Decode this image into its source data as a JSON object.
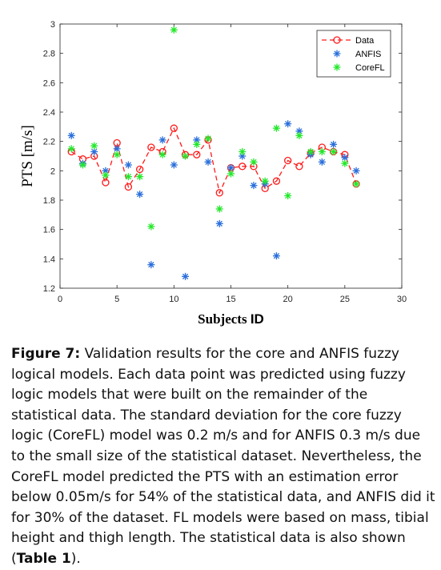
{
  "chart_data": {
    "type": "scatter",
    "xlabel_main": "Subjects",
    "xlabel_suffix": "ID",
    "ylabel": "PTS [m/s]",
    "xlim": [
      0,
      30
    ],
    "ylim": [
      1.2,
      3.0
    ],
    "x_ticks": [
      0,
      5,
      10,
      15,
      20,
      25,
      30
    ],
    "y_ticks": [
      1.2,
      1.4,
      1.6,
      1.8,
      2.0,
      2.2,
      2.4,
      2.6,
      2.8,
      3.0
    ],
    "x_tick_labels": [
      "0",
      "5",
      "10",
      "15",
      "20",
      "25",
      "30"
    ],
    "y_tick_labels": [
      "1.2",
      "1.4",
      "1.6",
      "1.8",
      "2",
      "2.2",
      "2.4",
      "2.6",
      "2.8",
      "3"
    ],
    "legend_position": "top-right",
    "series": [
      {
        "name": "Data",
        "style": "dashed-line-circle",
        "color": "#ff1a1a",
        "x": [
          1,
          2,
          3,
          4,
          5,
          6,
          7,
          8,
          9,
          10,
          11,
          12,
          13,
          14,
          15,
          16,
          17,
          18,
          19,
          20,
          21,
          22,
          23,
          24,
          25,
          26
        ],
        "y": [
          2.13,
          2.08,
          2.1,
          1.92,
          2.19,
          1.89,
          2.01,
          2.16,
          2.13,
          2.29,
          2.11,
          2.11,
          2.21,
          1.85,
          2.02,
          2.03,
          2.03,
          1.88,
          1.93,
          2.07,
          2.03,
          2.12,
          2.16,
          2.13,
          2.11,
          1.91
        ]
      },
      {
        "name": "ANFIS",
        "style": "star",
        "color": "#2a6fdb",
        "x": [
          1,
          2,
          3,
          4,
          5,
          6,
          7,
          8,
          9,
          10,
          11,
          12,
          13,
          14,
          15,
          16,
          17,
          18,
          19,
          20,
          21,
          22,
          23,
          24,
          25,
          26
        ],
        "y": [
          2.24,
          2.05,
          2.13,
          2.0,
          2.15,
          2.04,
          1.84,
          1.36,
          2.21,
          2.04,
          1.28,
          2.21,
          2.06,
          1.64,
          2.02,
          2.1,
          1.9,
          1.91,
          1.42,
          2.32,
          2.27,
          2.11,
          2.06,
          2.18,
          2.09,
          2.0
        ]
      },
      {
        "name": "CoreFL",
        "style": "star",
        "color": "#22e82a",
        "x": [
          1,
          2,
          3,
          4,
          5,
          6,
          7,
          8,
          9,
          10,
          11,
          12,
          13,
          14,
          15,
          16,
          17,
          18,
          19,
          20,
          21,
          22,
          23,
          24,
          25,
          26
        ],
        "y": [
          2.15,
          2.04,
          2.17,
          1.97,
          2.11,
          1.96,
          1.96,
          1.62,
          2.11,
          2.96,
          2.1,
          2.18,
          2.22,
          1.74,
          1.98,
          2.13,
          2.06,
          1.93,
          2.29,
          1.83,
          2.24,
          2.13,
          2.13,
          2.13,
          2.05,
          1.91
        ]
      }
    ]
  },
  "caption": {
    "label": "Figure 7:",
    "text_part1": " Validation results for the core and ANFIS fuzzy logical models. Each data point was predicted using fuzzy logic models that were built on the remainder of the statistical data. The standard deviation for the core fuzzy logic (CoreFL) model was 0.2 m/s and for ANFIS 0.3 m/s due to the small size of the statistical dataset. Nevertheless, the CoreFL model predicted the PTS with an estimation error below 0.05m/s for 54% of the statistical data, and ANFIS did it for 30% of the dataset. FL models were based on mass, tibial height and thigh length. The statistical data is also shown (",
    "table_ref": "Table 1",
    "text_part2": ")."
  }
}
